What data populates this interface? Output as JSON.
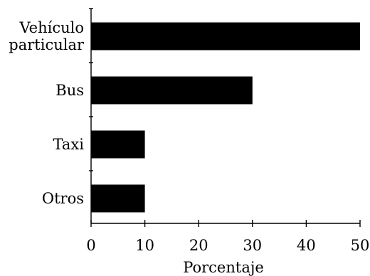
{
  "chart_data": {
    "type": "bar",
    "orientation": "horizontal",
    "categories": [
      [
        "Vehículo",
        "particular"
      ],
      [
        "Bus"
      ],
      [
        "Taxi"
      ],
      [
        "Otros"
      ]
    ],
    "values": [
      50,
      30,
      10,
      10
    ],
    "xlabel": "Porcentaje",
    "xlim": [
      0,
      50
    ],
    "xticks": [
      0,
      10,
      20,
      30,
      40,
      50
    ],
    "grid": false,
    "bar_color": "#000000"
  }
}
